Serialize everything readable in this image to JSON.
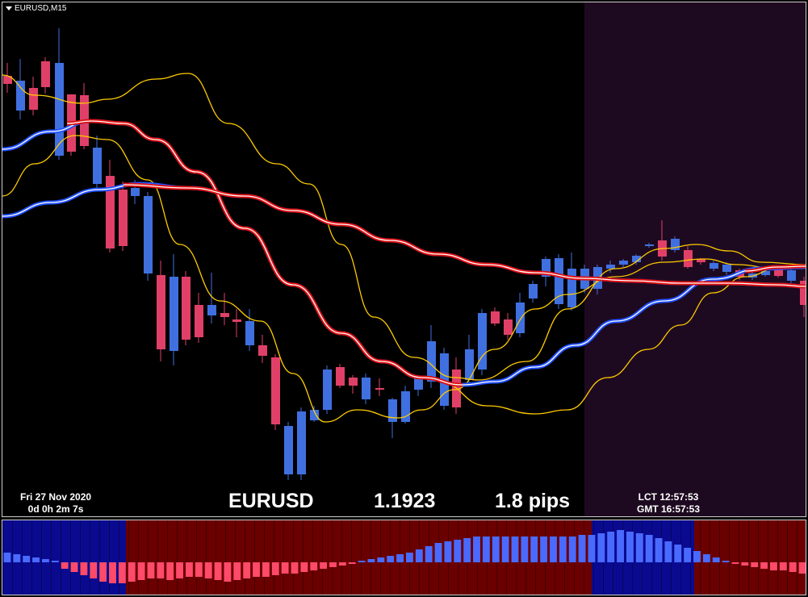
{
  "chart": {
    "title": "EURUSD,M15",
    "symbol": "EURUSD",
    "price": "1.1923",
    "spread": "1.8 pips",
    "date": "Fri 27 Nov 2020",
    "countdown": "0d  0h  2m  7s",
    "lct": "LCT 12:57:53",
    "gmt": "GMT 16:57:53"
  },
  "colors": {
    "background": "#000000",
    "session_highlight": "#1e0a20",
    "bull_candle": "#4070e0",
    "bear_candle": "#e04068",
    "fast_ma": "#ffcc00",
    "slow_ma": "#e01010",
    "trend_ma": "#2050ff",
    "osc_bull_bg": "#0a0a90",
    "osc_bear_bg": "#6a0000",
    "osc_bull_bar": "#4a6aff",
    "osc_bear_bar": "#ff4a6a"
  },
  "icons": {
    "menu": "triangle-down-icon"
  }
}
